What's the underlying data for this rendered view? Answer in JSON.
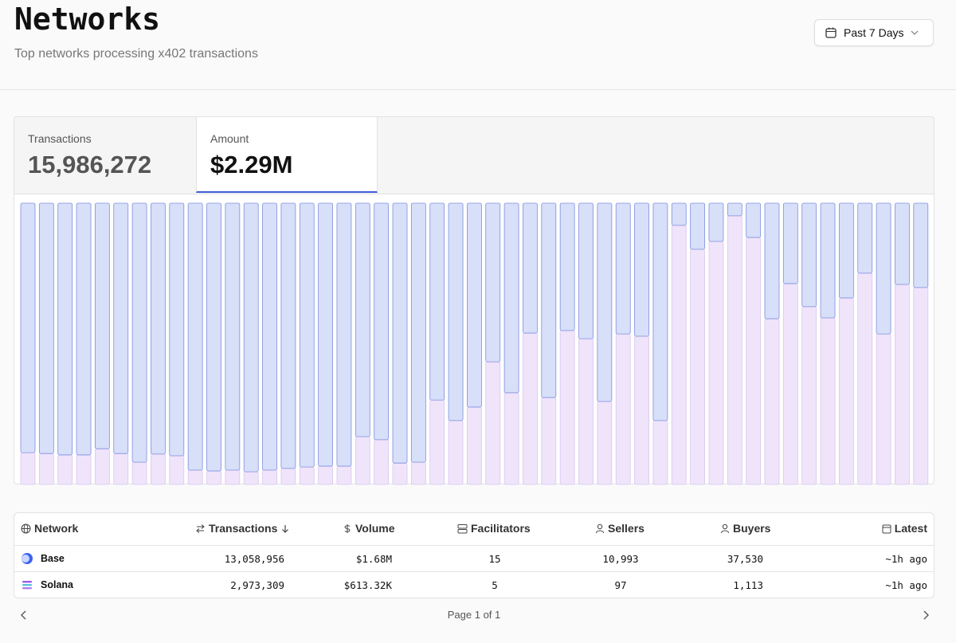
{
  "header": {
    "title": "Networks",
    "subtitle": "Top networks processing x402 transactions",
    "range": "Past 7 Days"
  },
  "tabs": [
    {
      "label": "Transactions",
      "value": "15,986,272"
    },
    {
      "label": "Amount",
      "value": "$2.29M"
    }
  ],
  "chart_data": {
    "type": "bar",
    "stacked": true,
    "categories": [
      null,
      null,
      null,
      null,
      null,
      null,
      null,
      null,
      null,
      null,
      null,
      null,
      null,
      null,
      null,
      null,
      null,
      null,
      null,
      null,
      null,
      null,
      null,
      null,
      null,
      null,
      null,
      null,
      null,
      null,
      null,
      null,
      null,
      null,
      null,
      null,
      null,
      null,
      null,
      null,
      null,
      null,
      null,
      null,
      null,
      null,
      null,
      null,
      null
    ],
    "ylim": [
      0,
      100
    ],
    "series": [
      {
        "name": "Solana",
        "color": "#f0e4fb",
        "values": [
          11.3,
          11.0,
          10.5,
          10.5,
          12.7,
          11.0,
          7.9,
          10.8,
          10.2,
          5.1,
          4.8,
          5.1,
          4.5,
          5.1,
          5.7,
          6.2,
          6.5,
          6.5,
          17.0,
          15.9,
          7.6,
          7.9,
          30.0,
          22.7,
          27.5,
          43.6,
          32.6,
          53.8,
          30.9,
          54.7,
          51.8,
          29.5,
          53.5,
          52.7,
          22.7,
          92.1,
          83.6,
          86.4,
          95.5,
          87.8,
          58.9,
          71.4,
          63.2,
          59.2,
          66.3,
          75.1,
          53.5,
          71.1,
          70.0
        ]
      },
      {
        "name": "Base",
        "color": "#d7dff9",
        "values": [
          88.7,
          89.0,
          89.5,
          89.5,
          87.3,
          89.0,
          92.1,
          89.2,
          89.8,
          94.9,
          95.2,
          94.9,
          95.5,
          94.9,
          94.3,
          93.8,
          93.5,
          93.5,
          83.0,
          84.1,
          92.4,
          92.1,
          70.0,
          77.3,
          72.5,
          56.4,
          67.4,
          46.2,
          69.1,
          45.3,
          48.2,
          70.5,
          46.5,
          47.3,
          77.3,
          7.9,
          16.4,
          13.6,
          4.5,
          12.2,
          41.1,
          28.6,
          36.8,
          40.8,
          33.7,
          24.9,
          46.5,
          28.9,
          30.0
        ]
      }
    ]
  },
  "table": {
    "columns": [
      "Network",
      "Transactions",
      "Volume",
      "Facilitators",
      "Sellers",
      "Buyers",
      "Latest"
    ],
    "rows": [
      [
        "Base",
        "13,058,956",
        "$1.68M",
        "15",
        "10,993",
        "37,530",
        "~1h ago"
      ],
      [
        "Solana",
        "2,973,309",
        "$613.32K",
        "5",
        "97",
        "1,113",
        "~1h ago"
      ]
    ]
  },
  "pagination": "Page 1 of 1"
}
